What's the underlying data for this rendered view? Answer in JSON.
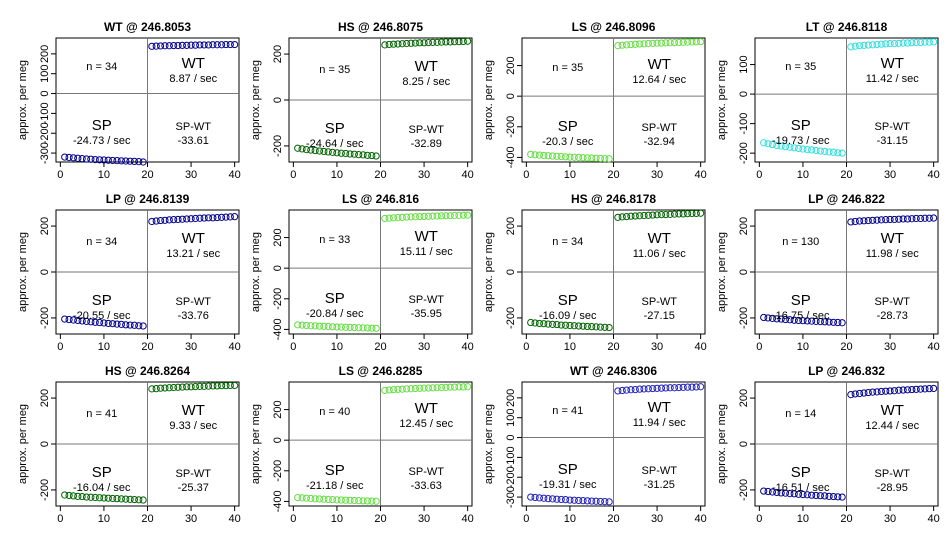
{
  "chart_data": [
    {
      "type": "scatter",
      "title": "WT @ 246.8053",
      "ylabel": "approx. per meg",
      "xlim": [
        0,
        40
      ],
      "yticks": [
        -300,
        -200,
        -100,
        0,
        100,
        200
      ],
      "ylim": [
        -345,
        280
      ],
      "color": "#00008b",
      "n_label": "n = 34",
      "wt_rate": "8.87 / sec",
      "sp_rate": "-24.73 / sec",
      "sp_wt": "-33.61",
      "labels": {
        "wt": "WT",
        "sp": "SP",
        "spwt": "SP-WT"
      },
      "x": [
        1,
        2,
        3,
        4,
        5,
        6,
        7,
        8,
        9,
        10,
        11,
        12,
        13,
        14,
        15,
        16,
        17,
        18,
        19,
        21,
        22,
        23,
        24,
        25,
        26,
        27,
        28,
        29,
        30,
        31,
        32,
        33,
        34,
        35,
        36,
        37,
        38,
        39,
        40
      ],
      "y": [
        -320,
        -322,
        -324,
        -326,
        -328,
        -330,
        -331,
        -333,
        -334,
        -335,
        -336,
        -337,
        -338,
        -339,
        -340,
        -341,
        -342,
        -343,
        -345,
        238,
        239,
        240,
        241,
        241,
        242,
        242,
        243,
        243,
        244,
        244,
        245,
        245,
        245,
        246,
        246,
        246,
        247,
        247,
        247
      ]
    },
    {
      "type": "scatter",
      "title": "HS @ 246.8075",
      "ylabel": "approx. per meg",
      "xlim": [
        0,
        40
      ],
      "yticks": [
        -200,
        0,
        200
      ],
      "ylim": [
        -270,
        270
      ],
      "color": "#006400",
      "n_label": "n = 35",
      "wt_rate": "8.25 / sec",
      "sp_rate": "-24.64 / sec",
      "sp_wt": "-32.89",
      "labels": {
        "wt": "WT",
        "sp": "SP",
        "spwt": "SP-WT"
      },
      "x": [
        1,
        2,
        3,
        4,
        5,
        6,
        7,
        8,
        9,
        10,
        11,
        12,
        13,
        14,
        15,
        16,
        17,
        18,
        19,
        21,
        22,
        23,
        24,
        25,
        26,
        27,
        28,
        29,
        30,
        31,
        32,
        33,
        34,
        35,
        36,
        37,
        38,
        39,
        40
      ],
      "y": [
        -210,
        -213,
        -216,
        -218,
        -220,
        -222,
        -224,
        -226,
        -228,
        -230,
        -232,
        -233,
        -235,
        -236,
        -238,
        -239,
        -241,
        -242,
        -244,
        240,
        242,
        243,
        244,
        245,
        246,
        247,
        248,
        249,
        249,
        250,
        251,
        251,
        252,
        253,
        253,
        254,
        254,
        255,
        256
      ]
    },
    {
      "type": "scatter",
      "title": "LS @ 246.8096",
      "ylabel": "approx. per meg",
      "xlim": [
        0,
        40
      ],
      "yticks": [
        -400,
        -200,
        0,
        200
      ],
      "ylim": [
        -430,
        380
      ],
      "color": "#66dd44",
      "n_label": "n = 35",
      "wt_rate": "12.64 / sec",
      "sp_rate": "-20.3 / sec",
      "sp_wt": "-32.94",
      "labels": {
        "wt": "WT",
        "sp": "SP",
        "spwt": "SP-WT"
      },
      "x": [
        1,
        2,
        3,
        4,
        5,
        6,
        7,
        8,
        9,
        10,
        11,
        12,
        13,
        14,
        15,
        16,
        17,
        18,
        19,
        21,
        22,
        23,
        24,
        25,
        26,
        27,
        28,
        29,
        30,
        31,
        32,
        33,
        34,
        35,
        36,
        37,
        38,
        39,
        40
      ],
      "y": [
        -380,
        -383,
        -385,
        -387,
        -389,
        -391,
        -393,
        -394,
        -396,
        -398,
        -399,
        -400,
        -402,
        -403,
        -404,
        -405,
        -407,
        -408,
        -409,
        330,
        333,
        335,
        337,
        339,
        341,
        342,
        344,
        345,
        346,
        347,
        348,
        349,
        350,
        351,
        352,
        353,
        354,
        355,
        356
      ]
    },
    {
      "type": "scatter",
      "title": "LT @ 246.8118",
      "ylabel": "approx. per meg",
      "xlim": [
        0,
        40
      ],
      "yticks": [
        -200,
        -100,
        0,
        100
      ],
      "ylim": [
        -230,
        190
      ],
      "color": "#33dddd",
      "n_label": "n = 35",
      "wt_rate": "11.42 / sec",
      "sp_rate": "-19.73 / sec",
      "sp_wt": "-31.15",
      "labels": {
        "wt": "WT",
        "sp": "SP",
        "spwt": "SP-WT"
      },
      "x": [
        1,
        2,
        3,
        4,
        5,
        6,
        7,
        8,
        9,
        10,
        11,
        12,
        13,
        14,
        15,
        16,
        17,
        18,
        19,
        21,
        22,
        23,
        24,
        25,
        26,
        27,
        28,
        29,
        30,
        31,
        32,
        33,
        34,
        35,
        36,
        37,
        38,
        39,
        40
      ],
      "y": [
        -165,
        -168,
        -171,
        -174,
        -176,
        -178,
        -180,
        -182,
        -184,
        -186,
        -188,
        -189,
        -191,
        -193,
        -194,
        -196,
        -197,
        -199,
        -200,
        160,
        162,
        164,
        165,
        166,
        167,
        168,
        169,
        170,
        171,
        171,
        172,
        173,
        173,
        174,
        175,
        175,
        176,
        176,
        177
      ]
    },
    {
      "type": "scatter",
      "title": "LP @ 246.8139",
      "ylabel": "approx. per meg",
      "xlim": [
        0,
        40
      ],
      "yticks": [
        -200,
        0,
        200
      ],
      "ylim": [
        -270,
        270
      ],
      "color": "#00008b",
      "n_label": "n = 34",
      "wt_rate": "13.21 / sec",
      "sp_rate": "-20.55 / sec",
      "sp_wt": "-33.76",
      "labels": {
        "wt": "WT",
        "sp": "SP",
        "spwt": "SP-WT"
      },
      "x": [
        1,
        2,
        3,
        4,
        5,
        6,
        7,
        8,
        9,
        10,
        11,
        12,
        13,
        14,
        15,
        16,
        17,
        18,
        19,
        21,
        22,
        23,
        24,
        25,
        26,
        27,
        28,
        29,
        30,
        31,
        32,
        33,
        34,
        35,
        36,
        37,
        38,
        39,
        40
      ],
      "y": [
        -205,
        -207,
        -209,
        -211,
        -213,
        -215,
        -217,
        -219,
        -220,
        -222,
        -224,
        -225,
        -227,
        -228,
        -230,
        -231,
        -232,
        -234,
        -235,
        220,
        222,
        224,
        225,
        227,
        228,
        229,
        230,
        231,
        232,
        233,
        234,
        235,
        236,
        236,
        237,
        238,
        239,
        240,
        241
      ]
    },
    {
      "type": "scatter",
      "title": "LS @ 246.816",
      "ylabel": "approx. per meg",
      "xlim": [
        0,
        40
      ],
      "yticks": [
        -400,
        -200,
        0,
        200
      ],
      "ylim": [
        -430,
        380
      ],
      "color": "#66dd44",
      "n_label": "n = 33",
      "wt_rate": "15.11 / sec",
      "sp_rate": "-20.84 / sec",
      "sp_wt": "-35.95",
      "labels": {
        "wt": "WT",
        "sp": "SP",
        "spwt": "SP-WT"
      },
      "x": [
        1,
        2,
        3,
        4,
        5,
        6,
        7,
        8,
        9,
        10,
        11,
        12,
        13,
        14,
        15,
        16,
        17,
        18,
        19,
        21,
        22,
        23,
        24,
        25,
        26,
        27,
        28,
        29,
        30,
        31,
        32,
        33,
        34,
        35,
        36,
        37,
        38,
        39,
        40
      ],
      "y": [
        -370,
        -372,
        -374,
        -376,
        -377,
        -379,
        -380,
        -381,
        -383,
        -384,
        -385,
        -386,
        -387,
        -388,
        -389,
        -390,
        -391,
        -392,
        -393,
        325,
        327,
        329,
        331,
        332,
        334,
        335,
        336,
        337,
        338,
        339,
        340,
        341,
        342,
        343,
        343,
        344,
        345,
        346,
        346
      ]
    },
    {
      "type": "scatter",
      "title": "HS @ 246.8178",
      "ylabel": "approx. per meg",
      "xlim": [
        0,
        40
      ],
      "yticks": [
        -200,
        0,
        200
      ],
      "ylim": [
        -270,
        270
      ],
      "color": "#006400",
      "n_label": "n = 34",
      "wt_rate": "11.06 / sec",
      "sp_rate": "-16.09 / sec",
      "sp_wt": "-27.15",
      "labels": {
        "wt": "WT",
        "sp": "SP",
        "spwt": "SP-WT"
      },
      "x": [
        1,
        2,
        3,
        4,
        5,
        6,
        7,
        8,
        9,
        10,
        11,
        12,
        13,
        14,
        15,
        16,
        17,
        18,
        19,
        21,
        22,
        23,
        24,
        25,
        26,
        27,
        28,
        29,
        30,
        31,
        32,
        33,
        34,
        35,
        36,
        37,
        38,
        39,
        40
      ],
      "y": [
        -220,
        -222,
        -224,
        -225,
        -227,
        -228,
        -229,
        -231,
        -232,
        -233,
        -234,
        -235,
        -236,
        -237,
        -238,
        -239,
        -240,
        -241,
        -242,
        238,
        240,
        241,
        243,
        244,
        245,
        246,
        247,
        248,
        249,
        250,
        250,
        251,
        252,
        253,
        253,
        254,
        255,
        255,
        256
      ]
    },
    {
      "type": "scatter",
      "title": "LP @ 246.822",
      "ylabel": "approx. per meg",
      "xlim": [
        0,
        40
      ],
      "yticks": [
        -200,
        0,
        200
      ],
      "ylim": [
        -270,
        270
      ],
      "color": "#00008b",
      "n_label": "n = 130",
      "wt_rate": "11.98 / sec",
      "sp_rate": "-16.75 / sec",
      "sp_wt": "-28.73",
      "labels": {
        "wt": "WT",
        "sp": "SP",
        "spwt": "SP-WT"
      },
      "x": [
        1,
        2,
        3,
        4,
        5,
        6,
        7,
        8,
        9,
        10,
        11,
        12,
        13,
        14,
        15,
        16,
        17,
        18,
        19,
        21,
        22,
        23,
        24,
        25,
        26,
        27,
        28,
        29,
        30,
        31,
        32,
        33,
        34,
        35,
        36,
        37,
        38,
        39,
        40
      ],
      "y": [
        -198,
        -200,
        -202,
        -204,
        -205,
        -207,
        -208,
        -210,
        -211,
        -212,
        -213,
        -214,
        -215,
        -216,
        -217,
        -218,
        -219,
        -220,
        -221,
        218,
        220,
        222,
        223,
        224,
        225,
        226,
        227,
        228,
        229,
        229,
        230,
        231,
        231,
        232,
        233,
        233,
        234,
        234,
        235
      ]
    },
    {
      "type": "scatter",
      "title": "HS @ 246.8264",
      "ylabel": "approx. per meg",
      "xlim": [
        0,
        40
      ],
      "yticks": [
        -200,
        0,
        200
      ],
      "ylim": [
        -270,
        270
      ],
      "color": "#006400",
      "n_label": "n = 41",
      "wt_rate": "9.33 / sec",
      "sp_rate": "-16.04 / sec",
      "sp_wt": "-25.37",
      "labels": {
        "wt": "WT",
        "sp": "SP",
        "spwt": "SP-WT"
      },
      "x": [
        1,
        2,
        3,
        4,
        5,
        6,
        7,
        8,
        9,
        10,
        11,
        12,
        13,
        14,
        15,
        16,
        17,
        18,
        19,
        21,
        22,
        23,
        24,
        25,
        26,
        27,
        28,
        29,
        30,
        31,
        32,
        33,
        34,
        35,
        36,
        37,
        38,
        39,
        40
      ],
      "y": [
        -222,
        -224,
        -226,
        -228,
        -229,
        -231,
        -232,
        -233,
        -234,
        -235,
        -236,
        -237,
        -238,
        -239,
        -240,
        -241,
        -242,
        -243,
        -244,
        240,
        241,
        243,
        244,
        245,
        246,
        247,
        248,
        249,
        249,
        250,
        251,
        251,
        252,
        253,
        253,
        254,
        254,
        255,
        255
      ]
    },
    {
      "type": "scatter",
      "title": "LS @ 246.8285",
      "ylabel": "approx. per meg",
      "xlim": [
        0,
        40
      ],
      "yticks": [
        -400,
        -200,
        0,
        200
      ],
      "ylim": [
        -430,
        380
      ],
      "color": "#66dd44",
      "n_label": "n = 40",
      "wt_rate": "12.45 / sec",
      "sp_rate": "-21.18 / sec",
      "sp_wt": "-33.63",
      "labels": {
        "wt": "WT",
        "sp": "SP",
        "spwt": "SP-WT"
      },
      "x": [
        1,
        2,
        3,
        4,
        5,
        6,
        7,
        8,
        9,
        10,
        11,
        12,
        13,
        14,
        15,
        16,
        17,
        18,
        19,
        21,
        22,
        23,
        24,
        25,
        26,
        27,
        28,
        29,
        30,
        31,
        32,
        33,
        34,
        35,
        36,
        37,
        38,
        39,
        40
      ],
      "y": [
        -375,
        -377,
        -379,
        -381,
        -383,
        -384,
        -386,
        -387,
        -388,
        -390,
        -391,
        -392,
        -393,
        -394,
        -395,
        -396,
        -397,
        -398,
        -399,
        325,
        328,
        330,
        332,
        333,
        335,
        336,
        338,
        339,
        340,
        341,
        342,
        343,
        344,
        345,
        346,
        347,
        348,
        348,
        349
      ]
    },
    {
      "type": "scatter",
      "title": "WT @ 246.8306",
      "ylabel": "approx. per meg",
      "xlim": [
        0,
        40
      ],
      "yticks": [
        -300,
        -200,
        -100,
        0,
        100,
        200
      ],
      "ylim": [
        -345,
        280
      ],
      "color": "#2222bb",
      "n_label": "n = 41",
      "wt_rate": "11.94 / sec",
      "sp_rate": "-19.31 / sec",
      "sp_wt": "-31.25",
      "labels": {
        "wt": "WT",
        "sp": "SP",
        "spwt": "SP-WT"
      },
      "x": [
        1,
        2,
        3,
        4,
        5,
        6,
        7,
        8,
        9,
        10,
        11,
        12,
        13,
        14,
        15,
        16,
        17,
        18,
        19,
        21,
        22,
        23,
        24,
        25,
        26,
        27,
        28,
        29,
        30,
        31,
        32,
        33,
        34,
        35,
        36,
        37,
        38,
        39,
        40
      ],
      "y": [
        -300,
        -302,
        -304,
        -306,
        -308,
        -309,
        -311,
        -312,
        -313,
        -315,
        -316,
        -317,
        -318,
        -319,
        -320,
        -321,
        -322,
        -323,
        -324,
        235,
        237,
        239,
        241,
        242,
        244,
        245,
        246,
        247,
        248,
        249,
        250,
        251,
        251,
        252,
        253,
        254,
        254,
        255,
        256
      ]
    },
    {
      "type": "scatter",
      "title": "LP @ 246.832",
      "ylabel": "approx. per meg",
      "xlim": [
        0,
        40
      ],
      "yticks": [
        -200,
        0,
        200
      ],
      "ylim": [
        -270,
        270
      ],
      "color": "#00008b",
      "n_label": "n = 14",
      "wt_rate": "12.44 / sec",
      "sp_rate": "-16.51 / sec",
      "sp_wt": "-28.95",
      "labels": {
        "wt": "WT",
        "sp": "SP",
        "spwt": "SP-WT"
      },
      "x": [
        1,
        2,
        3,
        4,
        5,
        6,
        7,
        8,
        9,
        10,
        11,
        12,
        13,
        14,
        15,
        16,
        17,
        18,
        19,
        21,
        22,
        23,
        24,
        25,
        26,
        27,
        28,
        29,
        30,
        31,
        32,
        33,
        34,
        35,
        36,
        37,
        38,
        39,
        40
      ],
      "y": [
        -205,
        -207,
        -209,
        -211,
        -213,
        -214,
        -216,
        -217,
        -219,
        -220,
        -221,
        -223,
        -224,
        -225,
        -226,
        -228,
        -229,
        -230,
        -231,
        215,
        218,
        220,
        222,
        224,
        226,
        227,
        229,
        230,
        231,
        232,
        234,
        235,
        236,
        237,
        238,
        239,
        240,
        241,
        242
      ]
    }
  ]
}
